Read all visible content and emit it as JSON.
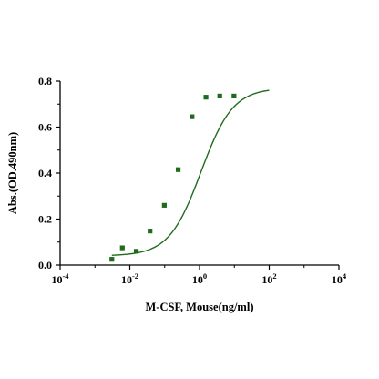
{
  "chart_data": {
    "type": "scatter",
    "xlabel": "M-CSF, Mouse(ng/ml)",
    "ylabel": "Abs.(OD.490nm)",
    "x_scale": "log10",
    "xlim": [
      0.0001,
      10000
    ],
    "ylim": [
      0.0,
      0.8
    ],
    "x_ticks": [
      {
        "value": 0.0001,
        "base": "10",
        "exp": "-4"
      },
      {
        "value": 0.01,
        "base": "10",
        "exp": "-2"
      },
      {
        "value": 1,
        "base": "10",
        "exp": "0"
      },
      {
        "value": 100,
        "base": "10",
        "exp": "2"
      },
      {
        "value": 10000,
        "base": "10",
        "exp": "4"
      }
    ],
    "y_ticks": [
      {
        "value": 0.0,
        "label": "0.0"
      },
      {
        "value": 0.2,
        "label": "0.2"
      },
      {
        "value": 0.4,
        "label": "0.4"
      },
      {
        "value": 0.6,
        "label": "0.6"
      },
      {
        "value": 0.8,
        "label": "0.8"
      }
    ],
    "grid": false,
    "legend": "none",
    "series": [
      {
        "x": [
          0.00305,
          0.0061,
          0.0153,
          0.0381,
          0.0977,
          0.244,
          0.61,
          1.53,
          3.81,
          9.77
        ],
        "y": [
          0.025,
          0.075,
          0.06,
          0.148,
          0.26,
          0.415,
          0.645,
          0.73,
          0.735,
          0.735
        ],
        "marker": "square",
        "color": "#1e6b1e"
      }
    ],
    "fit_curve": {
      "model": "4PL",
      "bottom": 0.04,
      "top": 0.77,
      "ec50": 1.1,
      "hill": 0.95,
      "x_range": [
        0.00305,
        100
      ],
      "color": "#1e6b1e"
    }
  }
}
